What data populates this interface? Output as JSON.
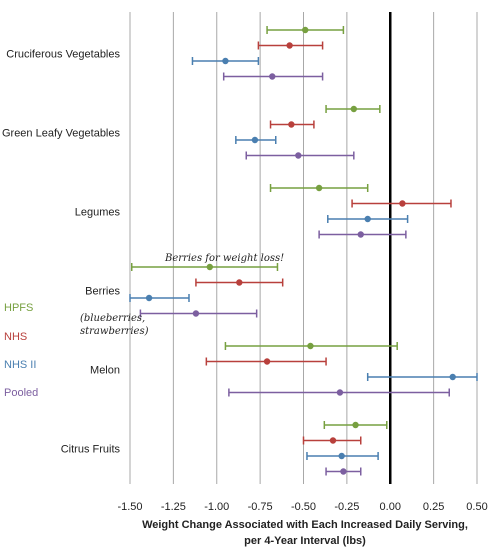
{
  "chart_data": {
    "type": "scatter",
    "subtype": "forest-plot-error-bars",
    "xlabel_line1": "Weight Change Associated with Each Increased Daily Serving,",
    "xlabel_line2": "per 4-Year Interval (lbs)",
    "xlim": [
      -1.5,
      0.5
    ],
    "xticks": [
      "-1.50",
      "-1.25",
      "-1.00",
      "-0.75",
      "-0.50",
      "-0.25",
      "0.00",
      "0.25",
      "0.50"
    ],
    "xtick_values": [
      -1.5,
      -1.25,
      -1.0,
      -0.75,
      -0.5,
      -0.25,
      0.0,
      0.25,
      0.5
    ],
    "grid": "vertical",
    "reference_line": 0.0,
    "categories": [
      "Cruciferous Vegetables",
      "Green Leafy Vegetables",
      "Legumes",
      "Berries",
      "Melon",
      "Citrus Fruits"
    ],
    "series": [
      {
        "name": "HPFS",
        "color": "#77a040",
        "points": [
          {
            "est": -0.49,
            "low": -0.71,
            "high": -0.27
          },
          {
            "est": -0.21,
            "low": -0.37,
            "high": -0.06
          },
          {
            "est": -0.41,
            "low": -0.69,
            "high": -0.13
          },
          {
            "est": -1.04,
            "low": -1.49,
            "high": -0.65
          },
          {
            "est": -0.46,
            "low": -0.95,
            "high": 0.04
          },
          {
            "est": -0.2,
            "low": -0.38,
            "high": -0.02
          }
        ]
      },
      {
        "name": "NHS",
        "color": "#b8403c",
        "points": [
          {
            "est": -0.58,
            "low": -0.76,
            "high": -0.39
          },
          {
            "est": -0.57,
            "low": -0.69,
            "high": -0.44
          },
          {
            "est": 0.07,
            "low": -0.22,
            "high": 0.35
          },
          {
            "est": -0.87,
            "low": -1.12,
            "high": -0.62
          },
          {
            "est": -0.71,
            "low": -1.06,
            "high": -0.37
          },
          {
            "est": -0.33,
            "low": -0.5,
            "high": -0.17
          }
        ]
      },
      {
        "name": "NHS II",
        "color": "#4a7fb0",
        "points": [
          {
            "est": -0.95,
            "low": -1.14,
            "high": -0.76
          },
          {
            "est": -0.78,
            "low": -0.89,
            "high": -0.66
          },
          {
            "est": -0.13,
            "low": -0.36,
            "high": 0.1
          },
          {
            "est": -1.39,
            "low": -1.53,
            "high": -1.16
          },
          {
            "est": 0.36,
            "low": -0.13,
            "high": 0.54
          },
          {
            "est": -0.28,
            "low": -0.48,
            "high": -0.07
          }
        ]
      },
      {
        "name": "Pooled",
        "color": "#7c5fa0",
        "points": [
          {
            "est": -0.68,
            "low": -0.96,
            "high": -0.39
          },
          {
            "est": -0.53,
            "low": -0.83,
            "high": -0.21
          },
          {
            "est": -0.17,
            "low": -0.41,
            "high": 0.09
          },
          {
            "est": -1.12,
            "low": -1.44,
            "high": -0.77
          },
          {
            "est": -0.29,
            "low": -0.93,
            "high": 0.34
          },
          {
            "est": -0.27,
            "low": -0.37,
            "high": -0.17
          }
        ]
      }
    ],
    "legend": {
      "placement": "left",
      "entries": [
        "HPFS",
        "NHS",
        "NHS II",
        "Pooled"
      ]
    },
    "annotations": {
      "berries_note": "Berries for weight loss!",
      "berries_detail_line1": "(blueberries,",
      "berries_detail_line2": "strawberries)"
    }
  }
}
